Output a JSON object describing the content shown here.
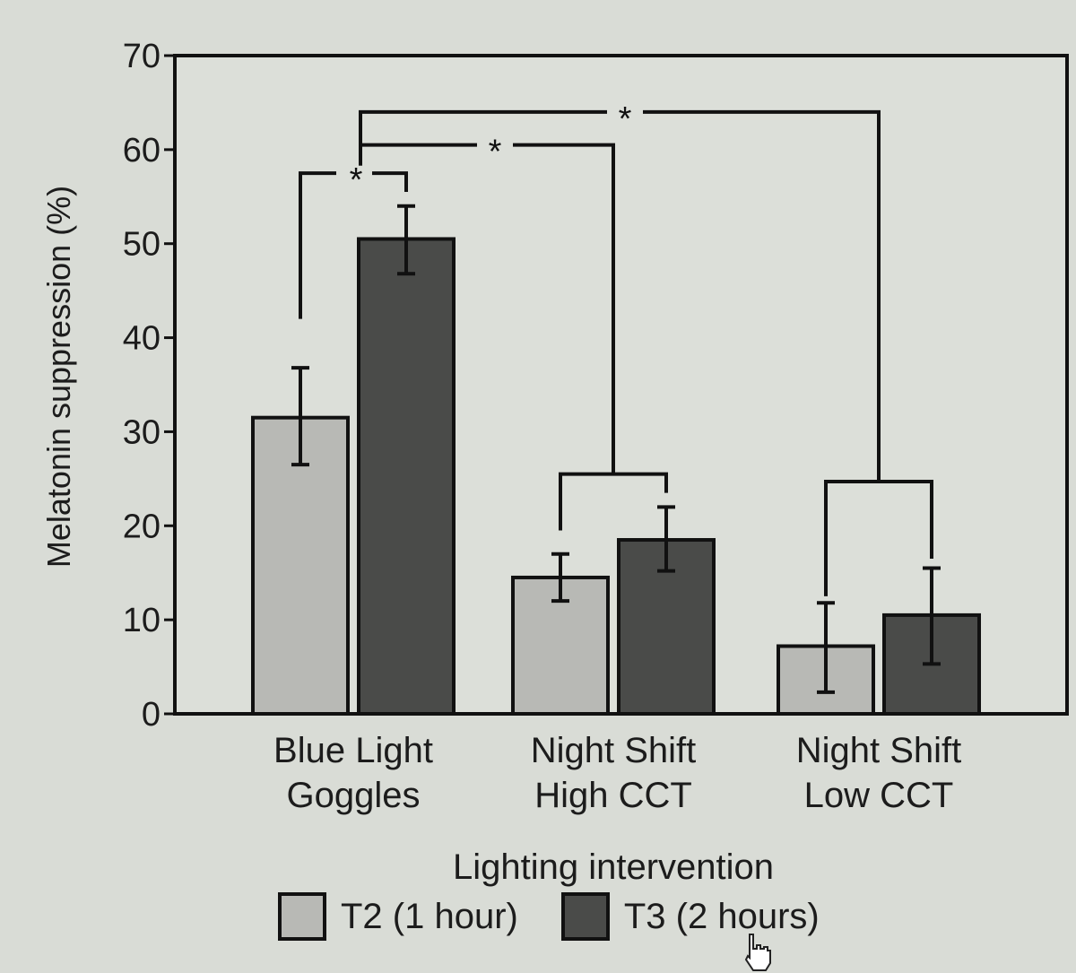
{
  "chart_data": {
    "type": "bar",
    "ylabel": "Melatonin suppression (%)",
    "xlabel": "Lighting intervention",
    "ylim": [
      0,
      70
    ],
    "yticks": [
      0,
      10,
      20,
      30,
      40,
      50,
      60,
      70
    ],
    "grid": false,
    "legend_position": "bottom",
    "categories": [
      [
        "Blue Light",
        "Goggles"
      ],
      [
        "Night Shift",
        "High CCT"
      ],
      [
        "Night Shift",
        "Low CCT"
      ]
    ],
    "series": [
      {
        "name": "T2 (1 hour)",
        "color": "#b8b9b5",
        "values": [
          31.5,
          14.5,
          7.2
        ],
        "error_low": [
          26.5,
          12.0,
          2.3
        ],
        "error_high": [
          36.8,
          17.0,
          11.8
        ]
      },
      {
        "name": "T3 (2 hours)",
        "color": "#4a4b49",
        "values": [
          50.5,
          18.5,
          10.5
        ],
        "error_low": [
          46.8,
          15.2,
          5.3
        ],
        "error_high": [
          54.0,
          22.0,
          15.5
        ]
      }
    ],
    "annotations": [
      {
        "text": "*",
        "comparison": "Blue Light Goggles T2 vs T3"
      },
      {
        "text": "*",
        "comparison": "Blue Light Goggles vs Night Shift High CCT"
      },
      {
        "text": "*",
        "comparison": "Blue Light Goggles vs Night Shift Low CCT"
      }
    ]
  },
  "cursor": {
    "icon": "hand-pointer-icon"
  }
}
